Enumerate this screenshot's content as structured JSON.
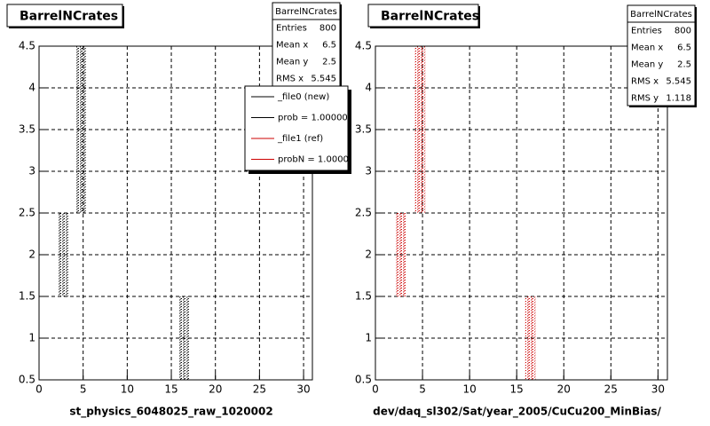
{
  "chart_data": [
    {
      "type": "scatter",
      "title": "BarrelNCrates",
      "xlabel": "st_physics_6048025_raw_1020002",
      "xlim": [
        0,
        31
      ],
      "ylim": [
        0.5,
        4.5
      ],
      "xticks": [
        0,
        5,
        10,
        15,
        20,
        25,
        30
      ],
      "yticks": [
        0.5,
        1,
        1.5,
        2,
        2.5,
        3,
        3.5,
        4,
        4.5
      ],
      "grid": true,
      "color": "#000000",
      "clusters": [
        {
          "x": [
            4.2,
            5.3
          ],
          "y": [
            2.5,
            4.5
          ]
        },
        {
          "x": [
            2.2,
            3.3
          ],
          "y": [
            1.5,
            2.5
          ]
        },
        {
          "x": [
            15.9,
            17.0
          ],
          "y": [
            0.5,
            1.5
          ]
        }
      ],
      "stats": {
        "header": "BarrelNCrates",
        "rows": [
          {
            "label": "Entries",
            "value": 800
          },
          {
            "label": "Mean x",
            "value": 6.5
          },
          {
            "label": "Mean y",
            "value": 2.5
          },
          {
            "label": "RMS x",
            "value": 5.545
          }
        ]
      },
      "legend": [
        {
          "name": "_file0 (new)",
          "color": "#000000"
        },
        {
          "name": "prob = 1.000000",
          "color": "#000000"
        },
        {
          "name": "_file1 (ref)",
          "color": "#cc0000"
        },
        {
          "name": "probN = 1.00000",
          "color": "#cc0000"
        }
      ]
    },
    {
      "type": "scatter",
      "title": "BarrelNCrates",
      "xlabel": "dev/daq_sl302/Sat/year_2005/CuCu200_MinBias/",
      "xlim": [
        0,
        31
      ],
      "ylim": [
        0.5,
        4.5
      ],
      "xticks": [
        0,
        5,
        10,
        15,
        20,
        25,
        30
      ],
      "yticks": [
        0.5,
        1,
        1.5,
        2,
        2.5,
        3,
        3.5,
        4,
        4.5
      ],
      "grid": true,
      "color": "#cc0000",
      "clusters": [
        {
          "x": [
            4.2,
            5.3
          ],
          "y": [
            2.5,
            4.5
          ]
        },
        {
          "x": [
            2.2,
            3.3
          ],
          "y": [
            1.5,
            2.5
          ]
        },
        {
          "x": [
            15.9,
            17.0
          ],
          "y": [
            0.5,
            1.5
          ]
        }
      ],
      "stats": {
        "header": "BarrelNCrates",
        "rows": [
          {
            "label": "Entries",
            "value": 800
          },
          {
            "label": "Mean x",
            "value": 6.5
          },
          {
            "label": "Mean y",
            "value": 2.5
          },
          {
            "label": "RMS x",
            "value": 5.545
          },
          {
            "label": "RMS y",
            "value": 1.118
          }
        ]
      }
    }
  ]
}
